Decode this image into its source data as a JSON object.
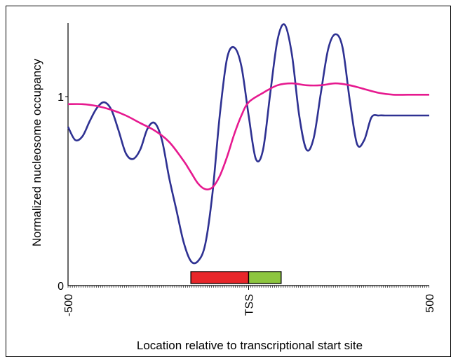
{
  "chart_data": {
    "type": "line",
    "title": "",
    "xlabel": "Location relative to transcriptional start site",
    "ylabel": "Normalized nucleosome occupancy",
    "xlim": [
      -500,
      500
    ],
    "ylim": [
      0,
      1.38
    ],
    "x_ticks": [
      {
        "value": -500,
        "label": "-500"
      },
      {
        "value": 0,
        "label": "TSS"
      },
      {
        "value": 500,
        "label": "500"
      }
    ],
    "y_ticks": [
      {
        "value": 0,
        "label": "0"
      },
      {
        "value": 1,
        "label": "1"
      }
    ],
    "grid": false,
    "series": [
      {
        "color": "#2e3192",
        "x": [
          -500,
          -480,
          -460,
          -440,
          -420,
          -400,
          -380,
          -360,
          -340,
          -320,
          -300,
          -280,
          -260,
          -240,
          -220,
          -200,
          -180,
          -160,
          -140,
          -120,
          -100,
          -80,
          -60,
          -40,
          -20,
          0,
          20,
          40,
          60,
          80,
          100,
          120,
          140,
          160,
          180,
          200,
          220,
          240,
          260,
          280,
          300,
          320,
          340,
          360,
          380,
          400,
          420,
          440,
          460,
          480,
          500
        ],
        "values": [
          0.84,
          0.77,
          0.79,
          0.87,
          0.94,
          0.97,
          0.93,
          0.82,
          0.7,
          0.67,
          0.72,
          0.83,
          0.86,
          0.77,
          0.57,
          0.4,
          0.23,
          0.13,
          0.13,
          0.22,
          0.49,
          0.9,
          1.2,
          1.26,
          1.16,
          0.9,
          0.67,
          0.72,
          1.02,
          1.3,
          1.38,
          1.22,
          0.9,
          0.72,
          0.78,
          1.02,
          1.25,
          1.33,
          1.26,
          0.98,
          0.75,
          0.77,
          0.89,
          0.9,
          0.9,
          0.9,
          0.9,
          0.9,
          0.9,
          0.9,
          0.9
        ]
      },
      {
        "color": "#e6198f",
        "x": [
          -500,
          -460,
          -420,
          -380,
          -340,
          -300,
          -260,
          -220,
          -180,
          -160,
          -140,
          -120,
          -100,
          -80,
          -60,
          -40,
          -20,
          0,
          40,
          80,
          120,
          160,
          200,
          240,
          280,
          320,
          360,
          400,
          440,
          480,
          500
        ],
        "values": [
          0.96,
          0.96,
          0.95,
          0.93,
          0.9,
          0.86,
          0.82,
          0.76,
          0.66,
          0.6,
          0.54,
          0.51,
          0.52,
          0.58,
          0.68,
          0.8,
          0.9,
          0.97,
          1.02,
          1.06,
          1.07,
          1.06,
          1.06,
          1.07,
          1.06,
          1.04,
          1.02,
          1.01,
          1.01,
          1.01,
          1.01
        ]
      }
    ],
    "annotation_bars": [
      {
        "x0": -160,
        "x1": 0,
        "color": "#e8262a"
      },
      {
        "x0": 0,
        "x1": 90,
        "color": "#8dc63f"
      }
    ]
  }
}
